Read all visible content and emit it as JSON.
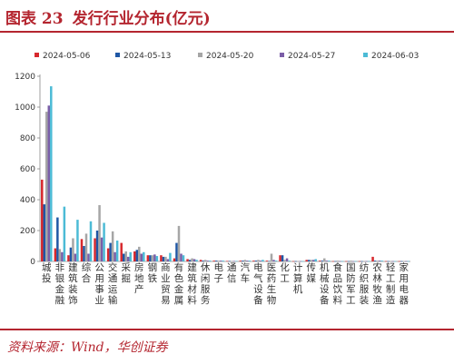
{
  "header": {
    "figure_no": "图表 23",
    "title": "发行行业分布(亿元)"
  },
  "footer": {
    "source": "资料来源：Wind，华创证券"
  },
  "chart_data": {
    "type": "bar",
    "ylim": [
      0,
      1200
    ],
    "yticks": [
      0,
      200,
      400,
      600,
      800,
      1000,
      1200
    ],
    "grid": false,
    "legend_position": "top",
    "categories": [
      "城投",
      "非银金融",
      "建筑装饰",
      "综合",
      "公用事业",
      "交通运输",
      "采掘",
      "房地产",
      "钢铁",
      "商业贸易",
      "有色金属",
      "建筑材料",
      "休闲服务",
      "电子",
      "通信",
      "汽车",
      "电气设备",
      "医药生物",
      "化工",
      "计算机",
      "传媒",
      "机械设备",
      "食品饮料",
      "国防军工",
      "纺织服装",
      "农林牧渔",
      "轻工制造",
      "家用电器"
    ],
    "series": [
      {
        "name": "2024-05-06",
        "color": "#d7282d",
        "values": [
          530,
          85,
          40,
          145,
          150,
          85,
          120,
          65,
          40,
          40,
          20,
          15,
          10,
          5,
          3,
          5,
          5,
          5,
          40,
          2,
          10,
          5,
          2,
          2,
          2,
          30,
          2,
          2
        ]
      },
      {
        "name": "2024-05-13",
        "color": "#1f57a5",
        "values": [
          370,
          285,
          90,
          100,
          200,
          120,
          50,
          75,
          40,
          30,
          120,
          10,
          5,
          5,
          3,
          5,
          5,
          3,
          40,
          2,
          10,
          5,
          2,
          2,
          2,
          5,
          2,
          2
        ]
      },
      {
        "name": "2024-05-20",
        "color": "#a6a6a6",
        "values": [
          970,
          80,
          150,
          180,
          365,
          195,
          65,
          95,
          40,
          30,
          230,
          20,
          10,
          5,
          3,
          10,
          10,
          50,
          10,
          2,
          10,
          20,
          5,
          5,
          2,
          5,
          2,
          2
        ]
      },
      {
        "name": "2024-05-27",
        "color": "#7b5ea7",
        "values": [
          1010,
          60,
          50,
          50,
          155,
          60,
          30,
          50,
          45,
          15,
          50,
          15,
          5,
          5,
          3,
          5,
          5,
          10,
          20,
          2,
          10,
          5,
          2,
          2,
          2,
          5,
          2,
          2
        ]
      },
      {
        "name": "2024-06-03",
        "color": "#4cbbd6",
        "values": [
          1135,
          355,
          270,
          260,
          250,
          135,
          60,
          60,
          35,
          55,
          40,
          10,
          5,
          5,
          3,
          5,
          10,
          5,
          5,
          2,
          15,
          5,
          2,
          2,
          2,
          5,
          2,
          2
        ]
      }
    ]
  }
}
